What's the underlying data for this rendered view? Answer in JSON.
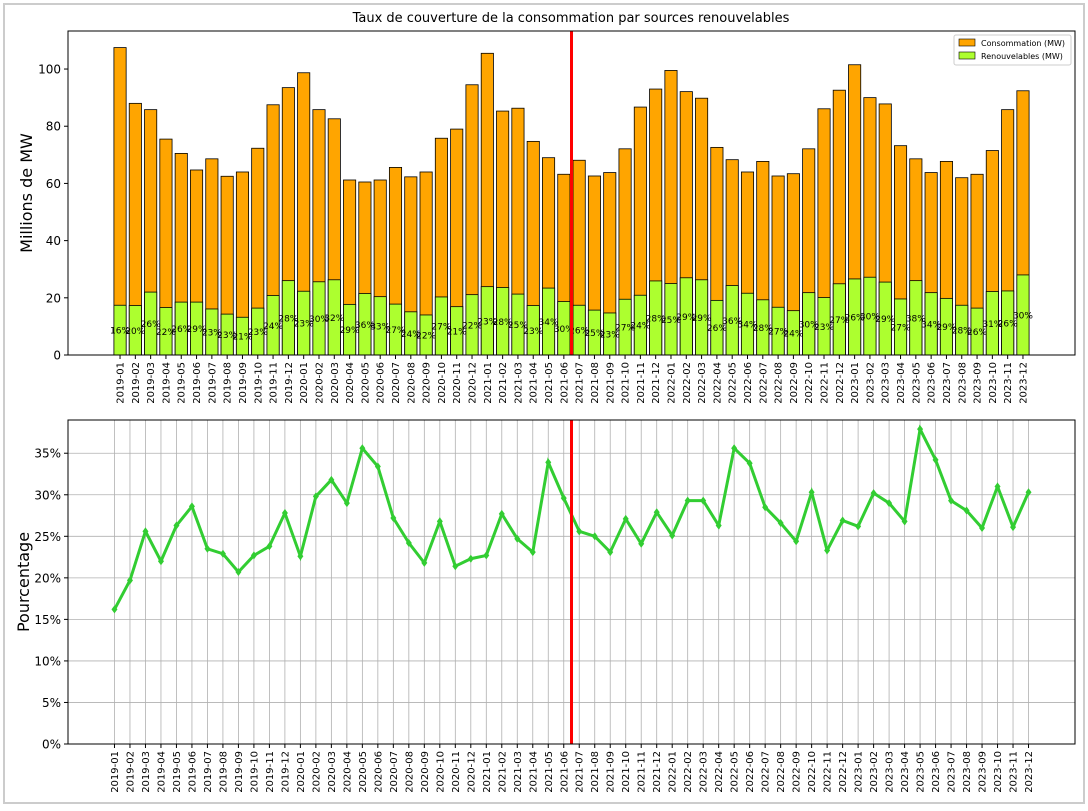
{
  "chart_data": [
    {
      "type": "bar",
      "title": "Taux de couverture de la consommation par sources renouvelables",
      "ylabel": "Millions de MW",
      "categories": [
        "2019-01",
        "2019-02",
        "2019-03",
        "2019-04",
        "2019-05",
        "2019-06",
        "2019-07",
        "2019-08",
        "2019-09",
        "2019-10",
        "2019-11",
        "2019-12",
        "2020-01",
        "2020-02",
        "2020-03",
        "2020-04",
        "2020-05",
        "2020-06",
        "2020-07",
        "2020-08",
        "2020-09",
        "2020-10",
        "2020-11",
        "2020-12",
        "2021-01",
        "2021-02",
        "2021-03",
        "2021-04",
        "2021-05",
        "2021-06",
        "2021-07",
        "2021-08",
        "2021-09",
        "2021-10",
        "2021-11",
        "2021-12",
        "2022-01",
        "2022-02",
        "2022-03",
        "2022-04",
        "2022-05",
        "2022-06",
        "2022-07",
        "2022-08",
        "2022-09",
        "2022-10",
        "2022-11",
        "2022-12",
        "2023-01",
        "2023-02",
        "2023-03",
        "2023-04",
        "2023-05",
        "2023-06",
        "2023-07",
        "2023-08",
        "2023-09",
        "2023-10",
        "2023-11",
        "2023-12"
      ],
      "series": [
        {
          "name": "Consommation (MW)",
          "color": "#ffa500",
          "values": [
            107.5,
            88,
            85.8,
            75.5,
            70.5,
            64.7,
            68.6,
            62.5,
            64,
            72.3,
            87.5,
            93.5,
            98.7,
            85.8,
            82.6,
            61.2,
            60.5,
            61.2,
            65.6,
            62.3,
            64,
            75.8,
            79,
            94.5,
            105.5,
            85.3,
            86.3,
            74.7,
            69,
            63.2,
            68.1,
            62.6,
            63.8,
            72.1,
            86.7,
            93,
            99.5,
            92.1,
            89.8,
            72.6,
            68.3,
            64,
            67.7,
            62.6,
            63.4,
            72.1,
            86.1,
            92.6,
            101.5,
            90,
            87.8,
            73.2,
            68.6,
            63.8,
            67.7,
            62,
            63.2,
            71.5,
            85.8,
            92.4
          ]
        },
        {
          "name": "Renouvelables (MW)",
          "color": "#adff2f",
          "values": [
            17.4,
            17.3,
            22.0,
            16.6,
            18.5,
            18.5,
            16.1,
            14.3,
            13.2,
            16.4,
            20.8,
            26.0,
            22.3,
            25.6,
            26.3,
            17.7,
            21.5,
            20.4,
            17.8,
            15.1,
            14.0,
            20.3,
            16.9,
            21.1,
            23.9,
            23.6,
            21.3,
            17.3,
            23.4,
            18.7,
            17.4,
            15.7,
            14.7,
            19.5,
            20.9,
            25.9,
            25.0,
            27.0,
            26.3,
            19.1,
            24.3,
            21.6,
            19.3,
            16.7,
            15.5,
            21.8,
            20.1,
            24.9,
            26.6,
            27.2,
            25.5,
            19.6,
            26.0,
            21.8,
            19.8,
            17.4,
            16.4,
            22.2,
            22.4,
            28.0
          ]
        }
      ],
      "ylim": [
        0,
        113.3
      ],
      "yticks": [
        0,
        20,
        40,
        60,
        80,
        100
      ],
      "grid": false,
      "legend": "upper right",
      "reference_line": {
        "x": 29.5,
        "color": "#ff0000"
      }
    },
    {
      "type": "line",
      "ylabel": "Pourcentage",
      "categories": [
        "2019-01",
        "2019-02",
        "2019-03",
        "2019-04",
        "2019-05",
        "2019-06",
        "2019-07",
        "2019-08",
        "2019-09",
        "2019-10",
        "2019-11",
        "2019-12",
        "2020-01",
        "2020-02",
        "2020-03",
        "2020-04",
        "2020-05",
        "2020-06",
        "2020-07",
        "2020-08",
        "2020-09",
        "2020-10",
        "2020-11",
        "2020-12",
        "2021-01",
        "2021-02",
        "2021-03",
        "2021-04",
        "2021-05",
        "2021-06",
        "2021-07",
        "2021-08",
        "2021-09",
        "2021-10",
        "2021-11",
        "2021-12",
        "2022-01",
        "2022-02",
        "2022-03",
        "2022-04",
        "2022-05",
        "2022-06",
        "2022-07",
        "2022-08",
        "2022-09",
        "2022-10",
        "2022-11",
        "2022-12",
        "2023-01",
        "2023-02",
        "2023-03",
        "2023-04",
        "2023-05",
        "2023-06",
        "2023-07",
        "2023-08",
        "2023-09",
        "2023-10",
        "2023-11",
        "2023-12"
      ],
      "series": [
        {
          "color": "#32cd32",
          "values": [
            16.2,
            19.7,
            25.6,
            22.0,
            26.3,
            28.6,
            23.5,
            22.9,
            20.7,
            22.7,
            23.8,
            27.8,
            22.6,
            29.8,
            31.8,
            29.0,
            35.6,
            33.4,
            27.2,
            24.2,
            21.8,
            26.8,
            21.4,
            22.3,
            22.7,
            27.7,
            24.7,
            23.1,
            33.9,
            29.6,
            25.6,
            25.0,
            23.1,
            27.1,
            24.1,
            27.9,
            25.1,
            29.3,
            29.3,
            26.3,
            35.6,
            33.8,
            28.5,
            26.6,
            24.4,
            30.3,
            23.3,
            26.9,
            26.2,
            30.2,
            29.0,
            26.8,
            37.9,
            34.2,
            29.3,
            28.1,
            26.0,
            31.0,
            26.1,
            30.3
          ],
          "value_labels": [
            "16%",
            "20%",
            "26%",
            "22%",
            "26%",
            "29%",
            "23%",
            "23%",
            "21%",
            "23%",
            "24%",
            "28%",
            "23%",
            "30%",
            "32%",
            "29%",
            "36%",
            "33%",
            "27%",
            "24%",
            "22%",
            "27%",
            "21%",
            "22%",
            "23%",
            "28%",
            "25%",
            "23%",
            "34%",
            "30%",
            "26%",
            "25%",
            "23%",
            "27%",
            "24%",
            "28%",
            "25%",
            "29%",
            "29%",
            "26%",
            "36%",
            "34%",
            "28%",
            "27%",
            "24%",
            "30%",
            "23%",
            "27%",
            "26%",
            "30%",
            "29%",
            "27%",
            "38%",
            "34%",
            "29%",
            "28%",
            "26%",
            "31%",
            "26%",
            "30%"
          ]
        }
      ],
      "ylim": [
        0,
        39
      ],
      "yticks": [
        {
          "value": 0,
          "label": "0%"
        },
        {
          "value": 5,
          "label": "5%"
        },
        {
          "value": 10,
          "label": "10%"
        },
        {
          "value": 15,
          "label": "15%"
        },
        {
          "value": 20,
          "label": "20%"
        },
        {
          "value": 25,
          "label": "25%"
        },
        {
          "value": 30,
          "label": "30%"
        },
        {
          "value": 35,
          "label": "35%"
        }
      ],
      "grid": true,
      "reference_line": {
        "x": 29.5,
        "color": "#ff0000"
      }
    }
  ]
}
